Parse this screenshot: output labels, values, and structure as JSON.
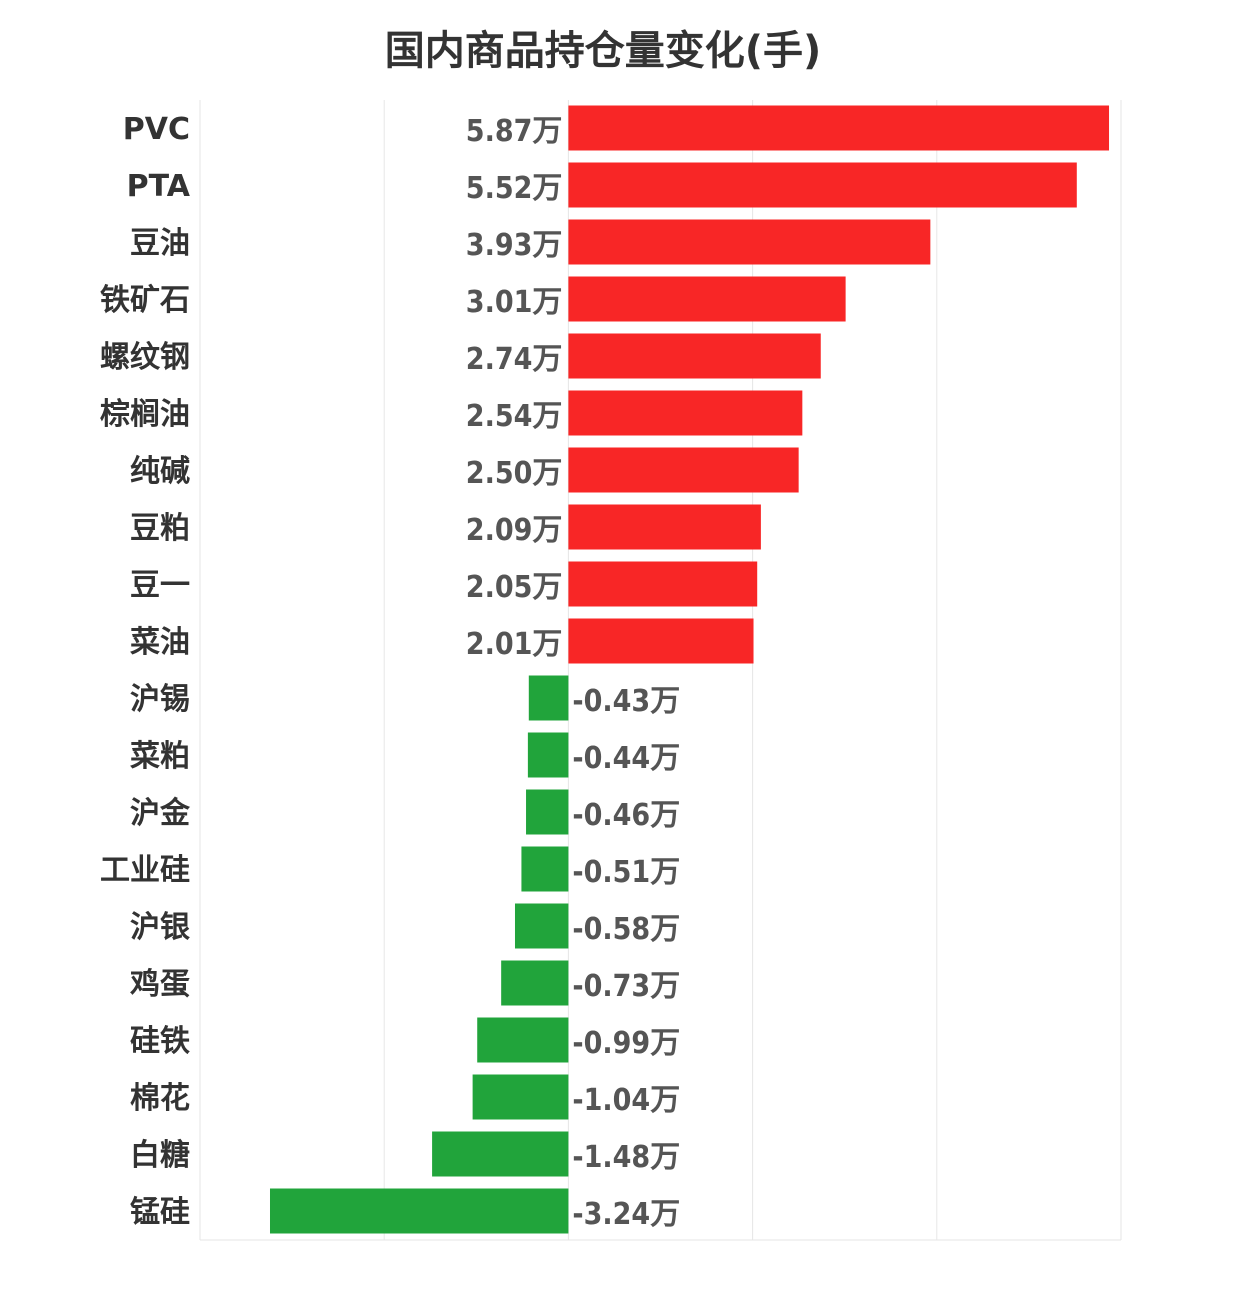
{
  "chart_data": {
    "type": "bar",
    "orientation": "horizontal",
    "title": "国内商品持仓量变化(手)",
    "unit_suffix": "万",
    "categories": [
      "PVC",
      "PTA",
      "豆油",
      "铁矿石",
      "螺纹钢",
      "棕榈油",
      "纯碱",
      "豆粕",
      "豆一",
      "菜油",
      "沪锡",
      "菜粕",
      "沪金",
      "工业硅",
      "沪银",
      "鸡蛋",
      "硅铁",
      "棉花",
      "白糖",
      "锰硅"
    ],
    "values": [
      5.87,
      5.52,
      3.93,
      3.01,
      2.74,
      2.54,
      2.5,
      2.09,
      2.05,
      2.01,
      -0.43,
      -0.44,
      -0.46,
      -0.51,
      -0.58,
      -0.73,
      -0.99,
      -1.04,
      -1.48,
      -3.24
    ],
    "value_labels": [
      "5.87万",
      "5.52万",
      "3.93万",
      "3.01万",
      "2.74万",
      "2.54万",
      "2.50万",
      "2.09万",
      "2.05万",
      "2.01万",
      "-0.43万",
      "-0.44万",
      "-0.46万",
      "-0.51万",
      "-0.58万",
      "-0.73万",
      "-0.99万",
      "-1.04万",
      "-1.48万",
      "-3.24万"
    ],
    "xlim": [
      -4,
      6
    ],
    "grid": true,
    "colors": {
      "positive": "#f82626",
      "negative": "#21a43b",
      "grid": "#e6e6e6"
    }
  }
}
